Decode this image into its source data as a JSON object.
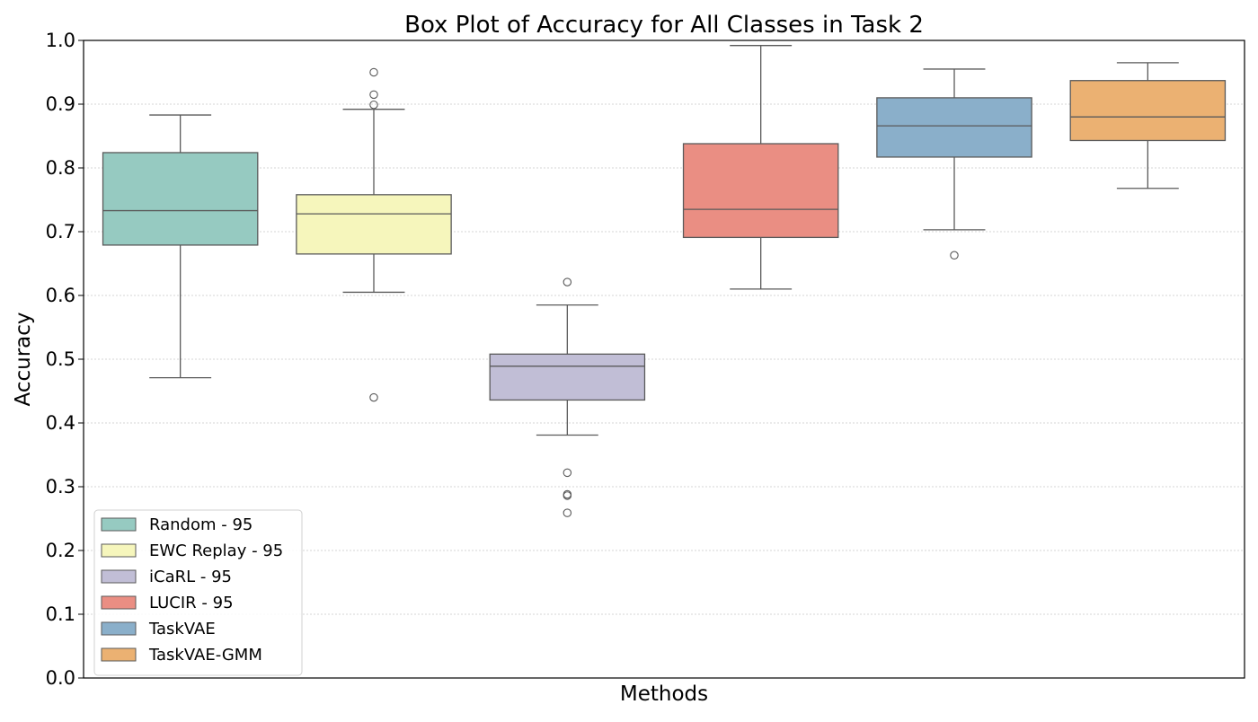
{
  "chart_data": {
    "type": "box",
    "title": "Box Plot of Accuracy for All Classes in Task 2",
    "xlabel": "Methods",
    "ylabel": "Accuracy",
    "ylim": [
      0,
      1
    ],
    "yticks": [
      "0.0",
      "0.1",
      "0.2",
      "0.3",
      "0.4",
      "0.5",
      "0.6",
      "0.7",
      "0.8",
      "0.9",
      "1.0"
    ],
    "grid": "horizontal dotted",
    "legend_position": "lower-left",
    "series": [
      {
        "name": "Random - 95",
        "color": "#96cac1",
        "whisker_low": 0.471,
        "q1": 0.679,
        "median": 0.733,
        "q3": 0.824,
        "whisker_high": 0.883,
        "outliers": []
      },
      {
        "name": "EWC Replay - 95",
        "color": "#f6f6bc",
        "whisker_low": 0.605,
        "q1": 0.665,
        "median": 0.728,
        "q3": 0.758,
        "whisker_high": 0.892,
        "outliers": [
          0.95,
          0.915,
          0.899,
          0.44
        ]
      },
      {
        "name": "iCaRL - 95",
        "color": "#c1bed6",
        "whisker_low": 0.381,
        "q1": 0.436,
        "median": 0.489,
        "q3": 0.508,
        "whisker_high": 0.585,
        "outliers": [
          0.621,
          0.322,
          0.288,
          0.286,
          0.259
        ]
      },
      {
        "name": "LUCIR - 95",
        "color": "#ea8e83",
        "whisker_low": 0.61,
        "q1": 0.691,
        "median": 0.735,
        "q3": 0.838,
        "whisker_high": 0.992,
        "outliers": []
      },
      {
        "name": "TaskVAE",
        "color": "#8aafca",
        "whisker_low": 0.703,
        "q1": 0.817,
        "median": 0.866,
        "q3": 0.91,
        "whisker_high": 0.955,
        "outliers": [
          0.663
        ]
      },
      {
        "name": "TaskVAE-GMM",
        "color": "#ebb172",
        "whisker_low": 0.768,
        "q1": 0.843,
        "median": 0.88,
        "q3": 0.937,
        "whisker_high": 0.965,
        "outliers": []
      }
    ]
  }
}
